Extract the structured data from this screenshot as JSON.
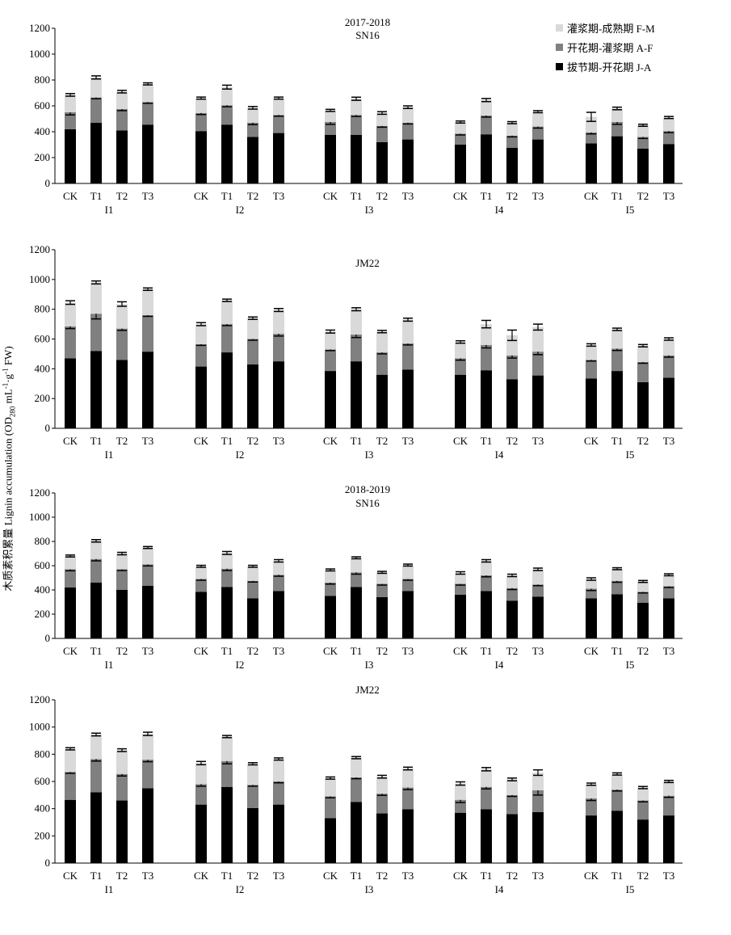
{
  "y_axis_label": {
    "zh": "木质素积累量",
    "en": "Lignin accumulation",
    "unit_pre": "(OD",
    "unit_sub": "280",
    "unit_mid": " mL",
    "unit_sup1": "-1",
    "unit_dot": "·g",
    "unit_sup2": "-1",
    "unit_post": " FW)"
  },
  "legend": [
    {
      "label": "灌浆期-成熟期 F-M",
      "color": "#d9d9d9"
    },
    {
      "label": "开花期-灌浆期 A-F",
      "color": "#808080"
    },
    {
      "label": "拔节期-开花期 J-A",
      "color": "#000000"
    }
  ],
  "colors": {
    "J-A": "#000000",
    "A-F": "#808080",
    "F-M": "#d9d9d9"
  },
  "chart_data": [
    {
      "type": "bar",
      "stacked": true,
      "title": "2017-2018",
      "subtitle": "SN16",
      "groups": [
        "I1",
        "I2",
        "I3",
        "I4",
        "I5"
      ],
      "categories": [
        "CK",
        "T1",
        "T2",
        "T3"
      ],
      "ylim": [
        0,
        1200
      ],
      "yticks": [
        0,
        200,
        400,
        600,
        800,
        1000,
        1200
      ],
      "series": [
        {
          "name": "拔节期-开花期 J-A",
          "values": [
            [
              420,
              470,
              410,
              455
            ],
            [
              405,
              455,
              360,
              390
            ],
            [
              375,
              375,
              320,
              340
            ],
            [
              300,
              380,
              275,
              340
            ],
            [
              310,
              365,
              270,
              305
            ]
          ],
          "err": [
            [
              8,
              12,
              12,
              8
            ],
            [
              10,
              10,
              8,
              12
            ],
            [
              8,
              12,
              18,
              15
            ],
            [
              8,
              22,
              12,
              12
            ],
            [
              10,
              12,
              8,
              30
            ]
          ]
        },
        {
          "name": "开花期-灌浆期 A-F",
          "values": [
            [
              130,
              195,
              165,
              175
            ],
            [
              140,
              150,
              110,
              140
            ],
            [
              100,
              155,
              125,
              130
            ],
            [
              85,
              145,
              95,
              100
            ],
            [
              85,
              110,
              90,
              100
            ]
          ],
          "err": [
            [
              20,
              10,
              12,
              10
            ],
            [
              12,
              12,
              15,
              10
            ],
            [
              18,
              12,
              10,
              10
            ],
            [
              10,
              12,
              10,
              12
            ],
            [
              12,
              18,
              12,
              12
            ]
          ]
        },
        {
          "name": "灌浆期-成熟期 F-M",
          "values": [
            [
              135,
              155,
              135,
              140
            ],
            [
              115,
              140,
              115,
              130
            ],
            [
              90,
              125,
              100,
              120
            ],
            [
              90,
              120,
              100,
              115
            ],
            [
              120,
              105,
              90,
              105
            ]
          ],
          "err": [
            [
              10,
              12,
              10,
              8
            ],
            [
              8,
              15,
              10,
              8
            ],
            [
              8,
              12,
              10,
              10
            ],
            [
              8,
              12,
              8,
              8
            ],
            [
              35,
              10,
              8,
              8
            ]
          ]
        }
      ]
    },
    {
      "type": "bar",
      "stacked": true,
      "title": "JM22",
      "groups": [
        "I1",
        "I2",
        "I3",
        "I4",
        "I5"
      ],
      "categories": [
        "CK",
        "T1",
        "T2",
        "T3"
      ],
      "ylim": [
        0,
        1200
      ],
      "yticks": [
        0,
        200,
        400,
        600,
        800,
        1000,
        1200
      ],
      "series": [
        {
          "name": "拔节期-开花期 J-A",
          "values": [
            [
              470,
              520,
              460,
              515
            ],
            [
              415,
              510,
              430,
              450
            ],
            [
              385,
              450,
              360,
              395
            ],
            [
              360,
              390,
              330,
              355
            ],
            [
              335,
              385,
              310,
              340
            ]
          ],
          "err": [
            [
              25,
              12,
              12,
              10
            ],
            [
              15,
              12,
              40,
              20
            ],
            [
              8,
              15,
              12,
              25
            ],
            [
              10,
              10,
              10,
              10
            ],
            [
              12,
              8,
              10,
              12
            ]
          ]
        },
        {
          "name": "开花期-灌浆期 A-F",
          "values": [
            [
              215,
              250,
              210,
              245
            ],
            [
              150,
              190,
              170,
              185
            ],
            [
              145,
              180,
              150,
              175
            ],
            [
              110,
              170,
              160,
              160
            ],
            [
              125,
              150,
              135,
              150
            ]
          ],
          "err": [
            [
              15,
              35,
              12,
              8
            ],
            [
              8,
              10,
              8,
              15
            ],
            [
              8,
              20,
              10,
              10
            ],
            [
              12,
              20,
              18,
              20
            ],
            [
              8,
              12,
              8,
              12
            ]
          ]
        },
        {
          "name": "灌浆期-成熟期 F-M",
          "values": [
            [
              160,
              210,
              165,
              175
            ],
            [
              135,
              160,
              140,
              160
            ],
            [
              120,
              170,
              140,
              160
            ],
            [
              110,
              140,
              135,
              165
            ],
            [
              100,
              130,
              110,
              110
            ]
          ],
          "err": [
            [
              12,
              10,
              15,
              8
            ],
            [
              10,
              8,
              8,
              10
            ],
            [
              10,
              10,
              8,
              10
            ],
            [
              8,
              25,
              35,
              20
            ],
            [
              8,
              8,
              8,
              8
            ]
          ]
        }
      ]
    },
    {
      "type": "bar",
      "stacked": true,
      "title": "2018-2019",
      "subtitle": "SN16",
      "groups": [
        "I1",
        "I2",
        "I3",
        "I4",
        "I5"
      ],
      "categories": [
        "CK",
        "T1",
        "T2",
        "T3"
      ],
      "ylim": [
        0,
        1200
      ],
      "yticks": [
        0,
        200,
        400,
        600,
        800,
        1000,
        1200
      ],
      "series": [
        {
          "name": "拔节期-开花期 J-A",
          "values": [
            [
              420,
              460,
              400,
              435
            ],
            [
              385,
              425,
              330,
              390
            ],
            [
              350,
              425,
              340,
              390
            ],
            [
              360,
              390,
              310,
              345
            ],
            [
              330,
              365,
              295,
              330
            ]
          ],
          "err": [
            [
              10,
              15,
              12,
              12
            ],
            [
              18,
              12,
              10,
              8
            ],
            [
              15,
              8,
              10,
              8
            ],
            [
              8,
              12,
              12,
              10
            ],
            [
              12,
              12,
              15,
              10
            ]
          ]
        },
        {
          "name": "开花期-灌浆期 A-F",
          "values": [
            [
              150,
              195,
              170,
              175
            ],
            [
              105,
              150,
              145,
              135
            ],
            [
              110,
              120,
              110,
              100
            ],
            [
              90,
              130,
              105,
              100
            ],
            [
              80,
              110,
              90,
              100
            ]
          ],
          "err": [
            [
              12,
              15,
              10,
              12
            ],
            [
              10,
              15,
              10,
              12
            ],
            [
              12,
              15,
              10,
              10
            ],
            [
              10,
              12,
              12,
              10
            ],
            [
              15,
              12,
              10,
              10
            ]
          ]
        },
        {
          "name": "灌浆期-成熟期 F-M",
          "values": [
            [
              110,
              150,
              130,
              140
            ],
            [
              105,
              130,
              120,
              115
            ],
            [
              105,
              120,
              95,
              115
            ],
            [
              90,
              120,
              105,
              125
            ],
            [
              80,
              100,
              85,
              95
            ]
          ],
          "err": [
            [
              8,
              10,
              10,
              8
            ],
            [
              8,
              12,
              8,
              10
            ],
            [
              8,
              8,
              8,
              8
            ],
            [
              10,
              10,
              10,
              10
            ],
            [
              10,
              8,
              8,
              8
            ]
          ]
        }
      ]
    },
    {
      "type": "bar",
      "stacked": true,
      "title": "JM22",
      "groups": [
        "I1",
        "I2",
        "I3",
        "I4",
        "I5"
      ],
      "categories": [
        "CK",
        "T1",
        "T2",
        "T3"
      ],
      "ylim": [
        0,
        1200
      ],
      "yticks": [
        0,
        200,
        400,
        600,
        800,
        1000,
        1200
      ],
      "series": [
        {
          "name": "拔节期-开花期 J-A",
          "values": [
            [
              465,
              520,
              460,
              550
            ],
            [
              430,
              560,
              405,
              430
            ],
            [
              330,
              450,
              365,
              395
            ],
            [
              370,
              395,
              360,
              375
            ],
            [
              350,
              385,
              320,
              350
            ]
          ],
          "err": [
            [
              20,
              15,
              15,
              20
            ],
            [
              20,
              12,
              12,
              10
            ],
            [
              40,
              10,
              12,
              15
            ],
            [
              10,
              12,
              8,
              10
            ],
            [
              12,
              10,
              8,
              10
            ]
          ]
        },
        {
          "name": "开花期-灌浆期 A-F",
          "values": [
            [
              205,
              245,
              195,
              210
            ],
            [
              150,
              190,
              170,
              170
            ],
            [
              160,
              180,
              145,
              160
            ],
            [
              95,
              165,
              140,
              160
            ],
            [
              125,
              155,
              140,
              145
            ]
          ],
          "err": [
            [
              10,
              15,
              15,
              15
            ],
            [
              15,
              20,
              10,
              10
            ],
            [
              10,
              10,
              12,
              15
            ],
            [
              20,
              15,
              10,
              35
            ],
            [
              15,
              10,
              10,
              12
            ]
          ]
        },
        {
          "name": "灌浆期-成熟期 F-M",
          "values": [
            [
              170,
              180,
              175,
              190
            ],
            [
              155,
              180,
              155,
              165
            ],
            [
              135,
              145,
              125,
              140
            ],
            [
              120,
              130,
              115,
              130
            ],
            [
              105,
              115,
              95,
              105
            ]
          ],
          "err": [
            [
              8,
              10,
              10,
              12
            ],
            [
              12,
              8,
              8,
              8
            ],
            [
              8,
              8,
              10,
              10
            ],
            [
              12,
              12,
              10,
              20
            ],
            [
              8,
              8,
              8,
              8
            ]
          ]
        }
      ]
    }
  ]
}
